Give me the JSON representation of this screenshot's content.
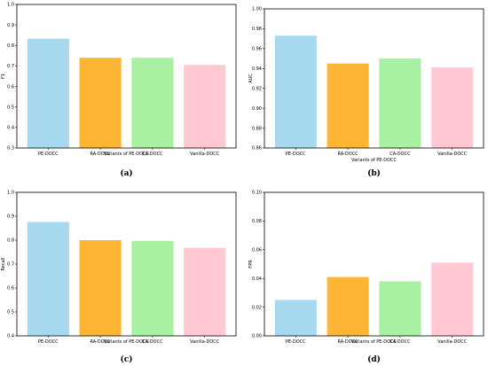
{
  "chart_data": [
    {
      "type": "bar",
      "panel": "(a)",
      "categories": [
        "PE-DOCC",
        "RA-DOCC",
        "CA-DOCC",
        "Vanilla-DOCC"
      ],
      "values": [
        0.833,
        0.74,
        0.74,
        0.705
      ],
      "xlabel": "Variants of PE-DOCC",
      "ylabel": "F1",
      "ylim": [
        0.3,
        1.0
      ],
      "yticks": [
        "0.3",
        "0.4",
        "0.5",
        "0.6",
        "0.7",
        "0.8",
        "0.9",
        "1.0"
      ],
      "colors": [
        "#a6d8ef",
        "#ffb534",
        "#a8f0a2",
        "#ffc8d2"
      ],
      "grid": false
    },
    {
      "type": "bar",
      "panel": "(b)",
      "categories": [
        "PE-DOCC",
        "RA-DOCC",
        "CA-DOCC",
        "Vanilla-DOCC"
      ],
      "values": [
        0.973,
        0.945,
        0.95,
        0.941
      ],
      "xlabel": "Variants of PE-DOCC",
      "ylabel": "AUC",
      "ylim": [
        0.86,
        1.0
      ],
      "yticks": [
        "0.86",
        "0.88",
        "0.90",
        "0.92",
        "0.94",
        "0.96",
        "0.98",
        "1.00"
      ],
      "colors": [
        "#a6d8ef",
        "#ffb534",
        "#a8f0a2",
        "#ffc8d2"
      ],
      "grid": false
    },
    {
      "type": "bar",
      "panel": "(c)",
      "categories": [
        "PE-DOCC",
        "RA-DOCC",
        "CA-DOCC",
        "Vanilla-DOCC"
      ],
      "values": [
        0.876,
        0.8,
        0.797,
        0.768
      ],
      "xlabel": "Variants of PE-DOCC",
      "ylabel": "Recall",
      "ylim": [
        0.4,
        1.0
      ],
      "yticks": [
        "0.4",
        "0.5",
        "0.6",
        "0.7",
        "0.8",
        "0.9",
        "1.0"
      ],
      "colors": [
        "#a6d8ef",
        "#ffb534",
        "#a8f0a2",
        "#ffc8d2"
      ],
      "grid": false
    },
    {
      "type": "bar",
      "panel": "(d)",
      "categories": [
        "PE-DOCC",
        "RA-DOCC",
        "CA-DOCC",
        "Vanilla-DOCC"
      ],
      "values": [
        0.025,
        0.041,
        0.038,
        0.051
      ],
      "xlabel": "Variants of PE-DOCC",
      "ylabel": "FPR",
      "ylim": [
        0.0,
        0.1
      ],
      "yticks": [
        "0.00",
        "0.02",
        "0.04",
        "0.06",
        "0.08",
        "0.10"
      ],
      "colors": [
        "#a6d8ef",
        "#ffb534",
        "#a8f0a2",
        "#ffc8d2"
      ],
      "grid": false
    }
  ]
}
